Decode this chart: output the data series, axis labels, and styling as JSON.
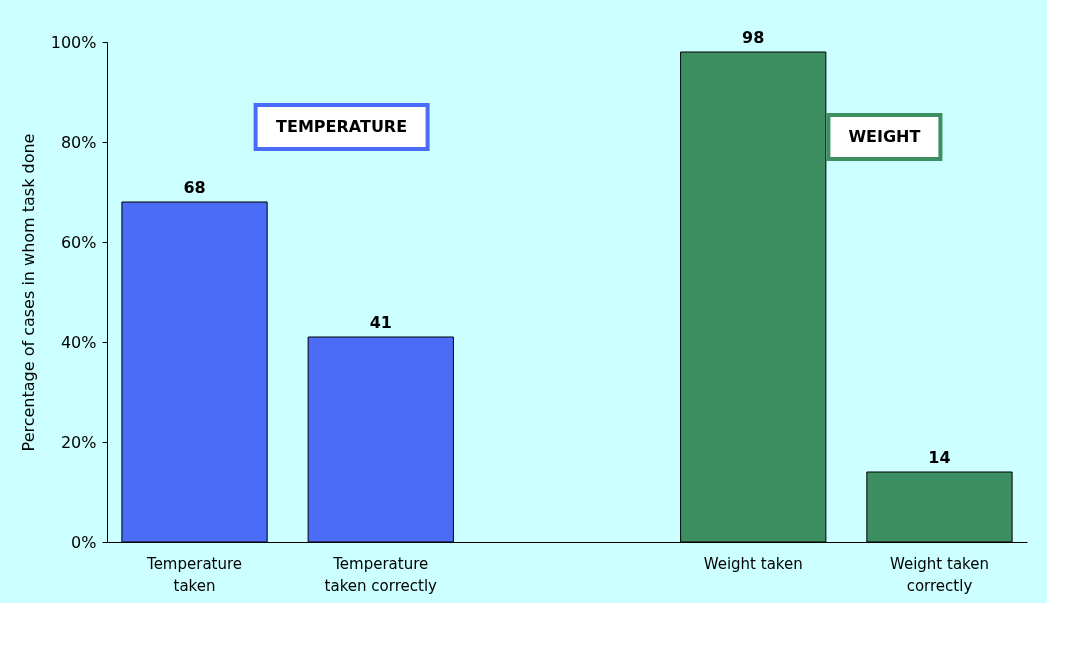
{
  "chart_data": {
    "type": "bar",
    "ylabel": "Percentage of cases in whom task done",
    "categories": [
      "Temperature taken",
      "Temperature taken correctly",
      null,
      "Weight taken",
      "Weight taken correctly"
    ],
    "values": [
      68,
      41,
      null,
      98,
      14
    ],
    "colors": [
      "#4a6cf7",
      "#4a6cf7",
      "#ffffff",
      "#3d8f62",
      "#3d8f62"
    ],
    "ylim": [
      0,
      100
    ],
    "yticks": [
      {
        "value": 0,
        "label": "0%"
      },
      {
        "value": 20,
        "label": "20%"
      },
      {
        "value": 40,
        "label": "40%"
      },
      {
        "value": 60,
        "label": "60%"
      },
      {
        "value": 80,
        "label": "80%"
      },
      {
        "value": 100,
        "label": "100%"
      }
    ],
    "data_labels": true,
    "grid": false,
    "annotations": [
      "TEMPERATURE",
      "WEIGHT"
    ]
  }
}
